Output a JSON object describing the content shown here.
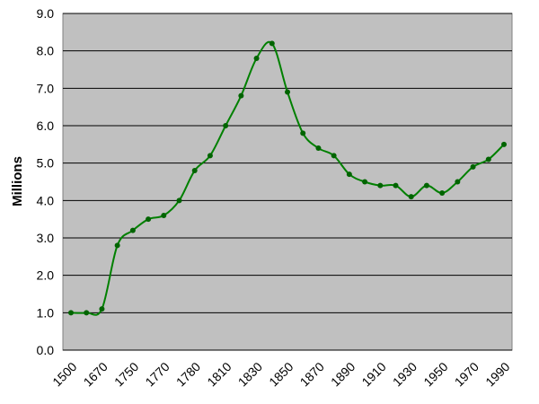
{
  "chart_data": {
    "type": "line",
    "title": "",
    "xlabel": "",
    "ylabel": "Millions",
    "ylim": [
      0,
      9
    ],
    "yticks": [
      "0.0",
      "1.0",
      "2.0",
      "3.0",
      "4.0",
      "5.0",
      "6.0",
      "7.0",
      "8.0",
      "9.0"
    ],
    "x_tick_labels": [
      "1500",
      "1670",
      "1750",
      "1770",
      "1780",
      "1810",
      "1830",
      "1850",
      "1870",
      "1890",
      "1910",
      "1930",
      "1950",
      "1970",
      "1990"
    ],
    "grid": true,
    "legend": "none",
    "colors": {
      "plot_background": "#c0c0c0",
      "gridline": "#000000",
      "line": "#008000",
      "marker": "#006400"
    },
    "values": [
      1.0,
      1.0,
      1.1,
      2.8,
      3.2,
      3.5,
      3.6,
      4.0,
      4.8,
      5.2,
      6.0,
      6.8,
      7.8,
      8.2,
      6.9,
      5.8,
      5.4,
      5.2,
      4.7,
      4.5,
      4.4,
      4.4,
      4.1,
      4.4,
      4.2,
      4.5,
      4.9,
      5.1,
      5.5
    ]
  }
}
